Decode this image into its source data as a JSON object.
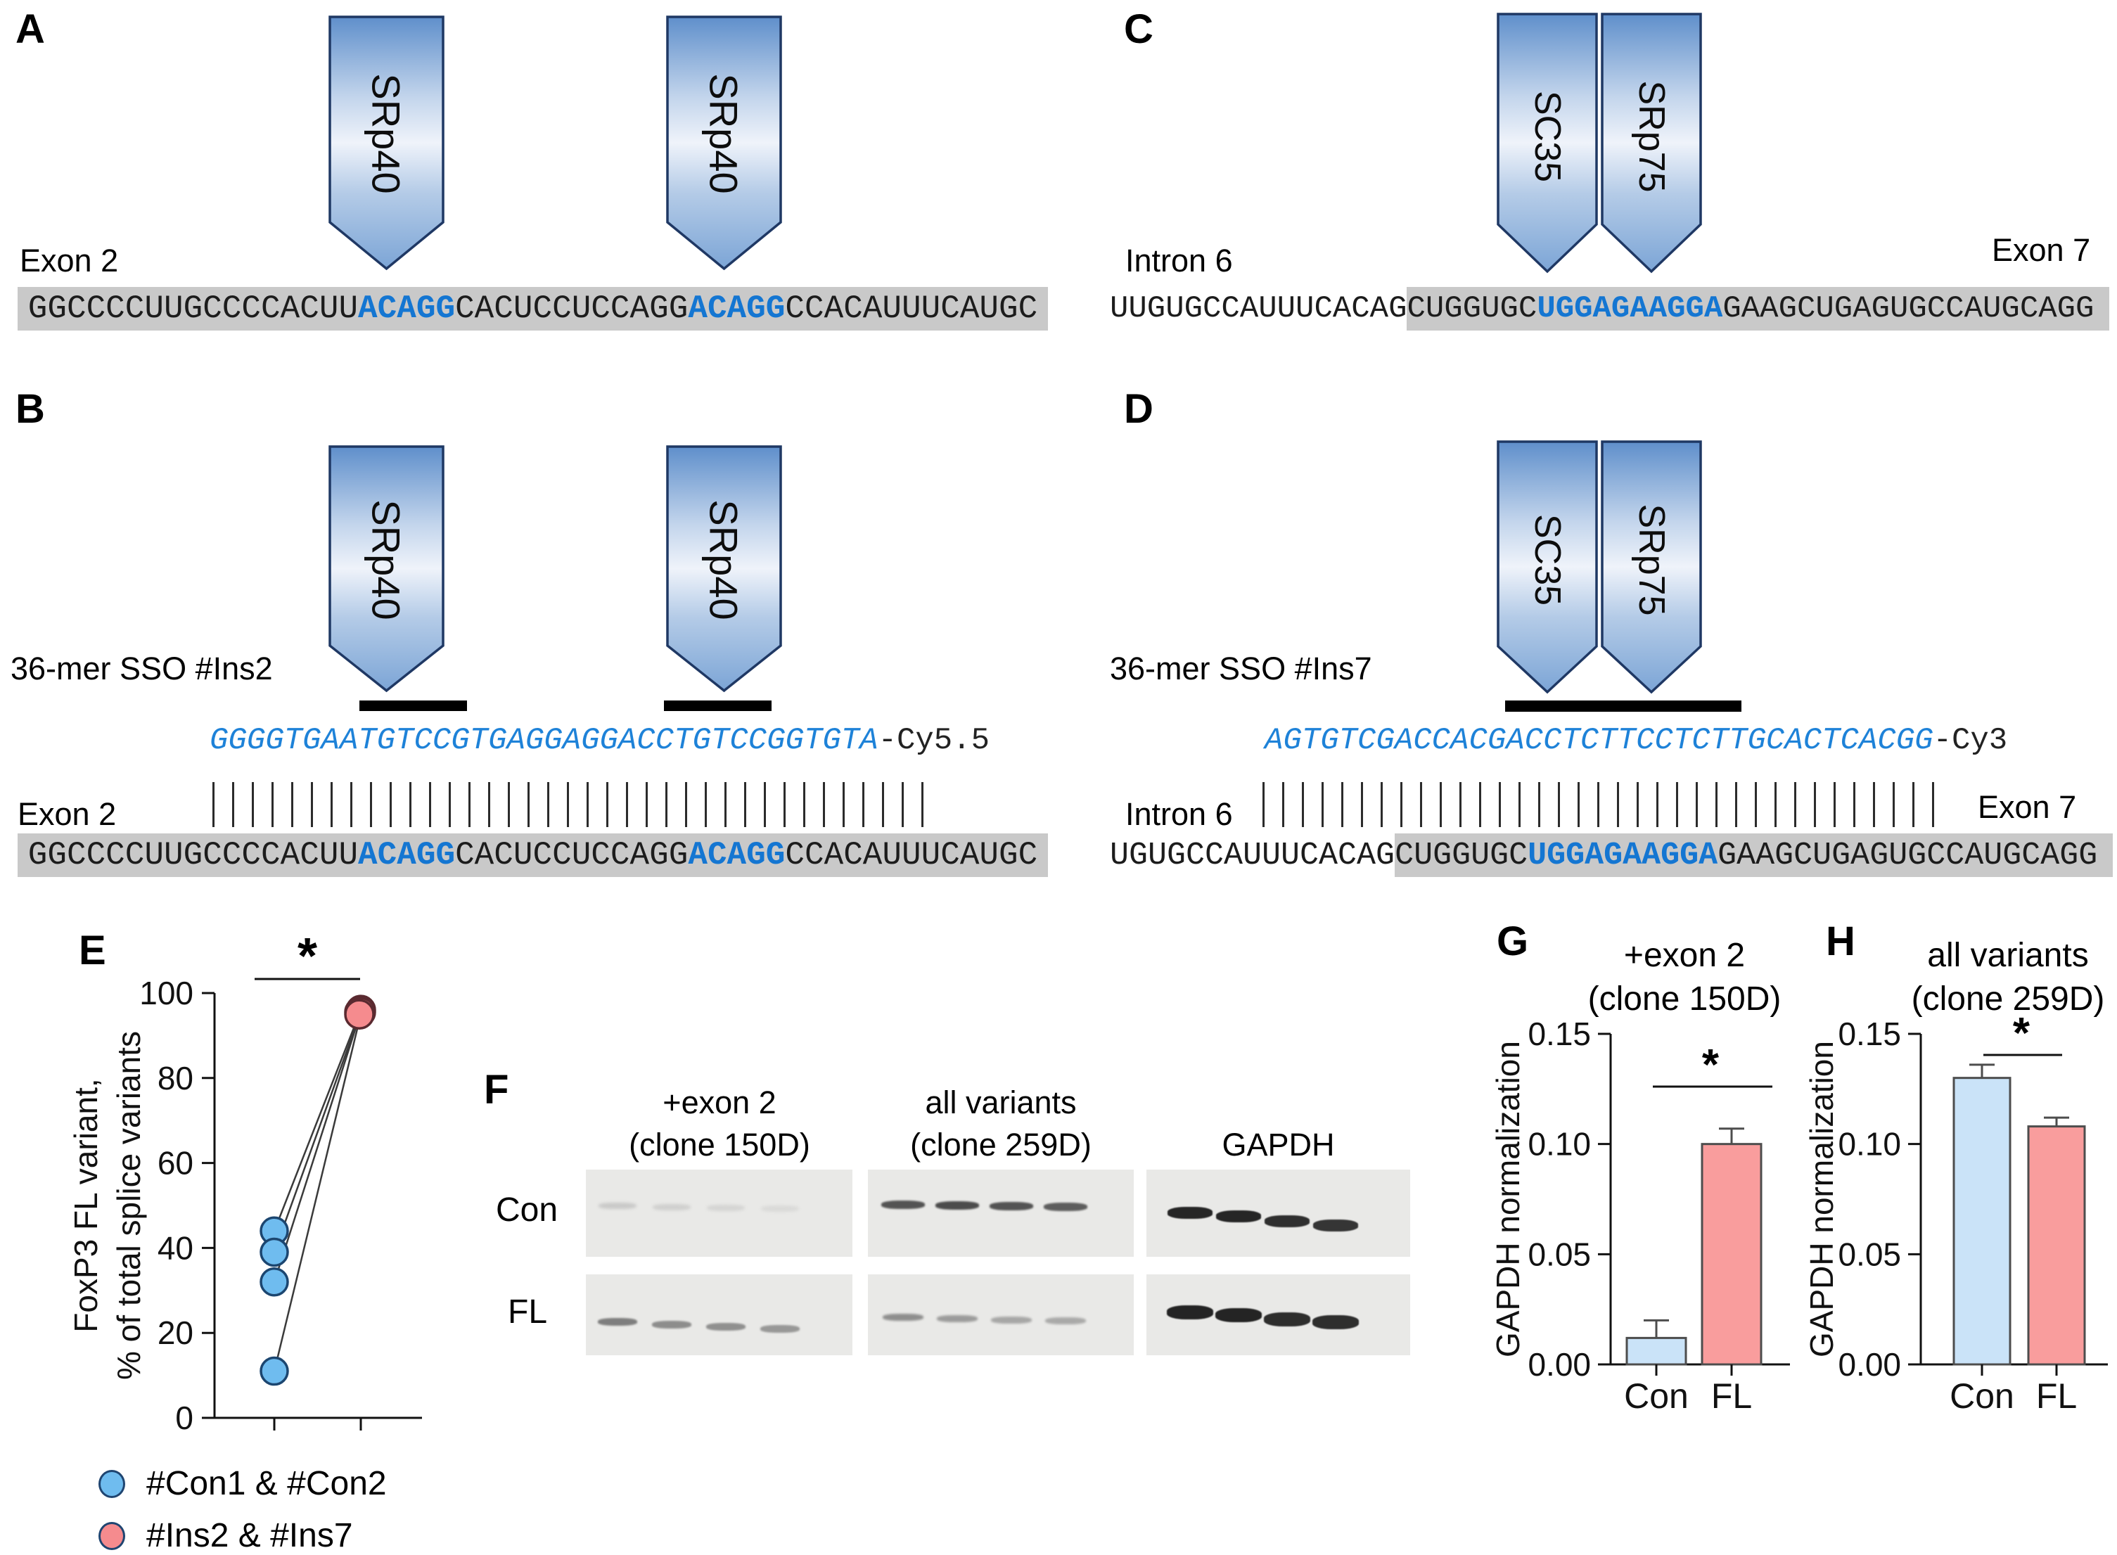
{
  "figure": {
    "panel_a": {
      "label": "A",
      "arrows": [
        "SRp40",
        "SRp40"
      ],
      "region_label": "Exon 2",
      "sequence": [
        {
          "t": "GGCCCCUUGCCCCACUU"
        },
        {
          "t": "ACAGG",
          "color": "blue"
        },
        {
          "t": "CACUCCUCCAGG"
        },
        {
          "t": "ACAGG",
          "color": "blue"
        },
        {
          "t": "CCACAUUUCAUGC"
        }
      ]
    },
    "panel_b": {
      "label": "B",
      "arrows": [
        "SRp40",
        "SRp40"
      ],
      "sso_label": "36-mer SSO #Ins2",
      "sso_seq": "GGGGTGAATGTCCGTGAGGAGGACCTGTCCGGTGTA",
      "sso_tag": "-Cy5.5",
      "region_label": "Exon 2",
      "sequence": [
        {
          "t": "GGCCCCUUGCCCCACUU"
        },
        {
          "t": "ACAGG",
          "color": "blue"
        },
        {
          "t": "CACUCCUCCAGG"
        },
        {
          "t": "ACAGG",
          "color": "blue"
        },
        {
          "t": "CCACAUUUCAUGC"
        }
      ]
    },
    "panel_c": {
      "label": "C",
      "arrows": [
        "SC35",
        "SRp75"
      ],
      "region_left": "Intron 6",
      "region_right": "Exon 7",
      "sequence": [
        {
          "t": "UUGUGCCAUUUCACAG"
        },
        {
          "t": "CUGGUGC",
          "bg": "gray"
        },
        {
          "t": "UGGAGAAGGA",
          "bg": "gray",
          "color": "blue"
        },
        {
          "t": "GAAGCUGAGUGCCAUGCAGG",
          "bg": "gray"
        }
      ]
    },
    "panel_d": {
      "label": "D",
      "arrows": [
        "SC35",
        "SRp75"
      ],
      "sso_label": "36-mer SSO #Ins7",
      "sso_seq": "AGTGTCGACCACGACCTCTTCCTCTTGCACTCACGG",
      "sso_tag": "-Cy3",
      "region_left": "Intron 6",
      "region_right": "Exon 7",
      "sequence": [
        {
          "t": "UGUGCCAUUUCACAG"
        },
        {
          "t": "CUGGUGC",
          "bg": "gray"
        },
        {
          "t": "UGGAGAAGGA",
          "bg": "gray",
          "color": "blue"
        },
        {
          "t": "GAAGCUGAGUGCCAUGCAGG",
          "bg": "gray"
        }
      ]
    },
    "panel_f": {
      "label": "F",
      "columns": [
        [
          "+exon 2",
          "(clone 150D)"
        ],
        [
          "all variants",
          "(clone 259D)"
        ],
        [
          "GAPDH"
        ]
      ],
      "row_labels": [
        "Con",
        "FL"
      ],
      "lanes_per_blot": 4
    }
  },
  "chart_data": [
    {
      "type": "scatter",
      "panel_label": "E",
      "ylabel": [
        "FoxP3 FL variant,",
        "% of total splice variants"
      ],
      "ylim": [
        0,
        100
      ],
      "yticks": [
        0,
        20,
        40,
        60,
        80,
        100
      ],
      "paired": true,
      "series": [
        {
          "name": "#Con1 & #Con2",
          "values": [
            44,
            39,
            32,
            11
          ]
        },
        {
          "name": "#Ins2 & #Ins7",
          "values": [
            96,
            95.5,
            95.5,
            95
          ]
        }
      ],
      "significance": "*",
      "legend": [
        {
          "label": "#Con1 & #Con2",
          "color": "#6FBCEF"
        },
        {
          "label": "#Ins2 & #Ins7",
          "color": "#F58B8E"
        }
      ]
    },
    {
      "type": "bar",
      "panel_label": "G",
      "title": [
        "+exon 2",
        "(clone 150D)"
      ],
      "ylabel": "GAPDH normalization",
      "ylim": [
        0,
        0.15
      ],
      "yticks": [
        "0.00",
        "0.05",
        "0.10",
        "0.15"
      ],
      "categories": [
        "Con",
        "FL"
      ],
      "values": [
        0.012,
        0.1
      ],
      "errors": [
        0.008,
        0.007
      ],
      "bar_colors": [
        "#CAE3F8",
        "#F99D9D"
      ],
      "significance": "*"
    },
    {
      "type": "bar",
      "panel_label": "H",
      "title": [
        "all variants",
        "(clone 259D)"
      ],
      "ylabel": "GAPDH normalization",
      "ylim": [
        0,
        0.15
      ],
      "yticks": [
        "0.00",
        "0.05",
        "0.10",
        "0.15"
      ],
      "categories": [
        "Con",
        "FL"
      ],
      "values": [
        0.13,
        0.108
      ],
      "errors": [
        0.006,
        0.004
      ],
      "bar_colors": [
        "#CAE3F8",
        "#F99D9D"
      ],
      "significance": "*"
    }
  ]
}
